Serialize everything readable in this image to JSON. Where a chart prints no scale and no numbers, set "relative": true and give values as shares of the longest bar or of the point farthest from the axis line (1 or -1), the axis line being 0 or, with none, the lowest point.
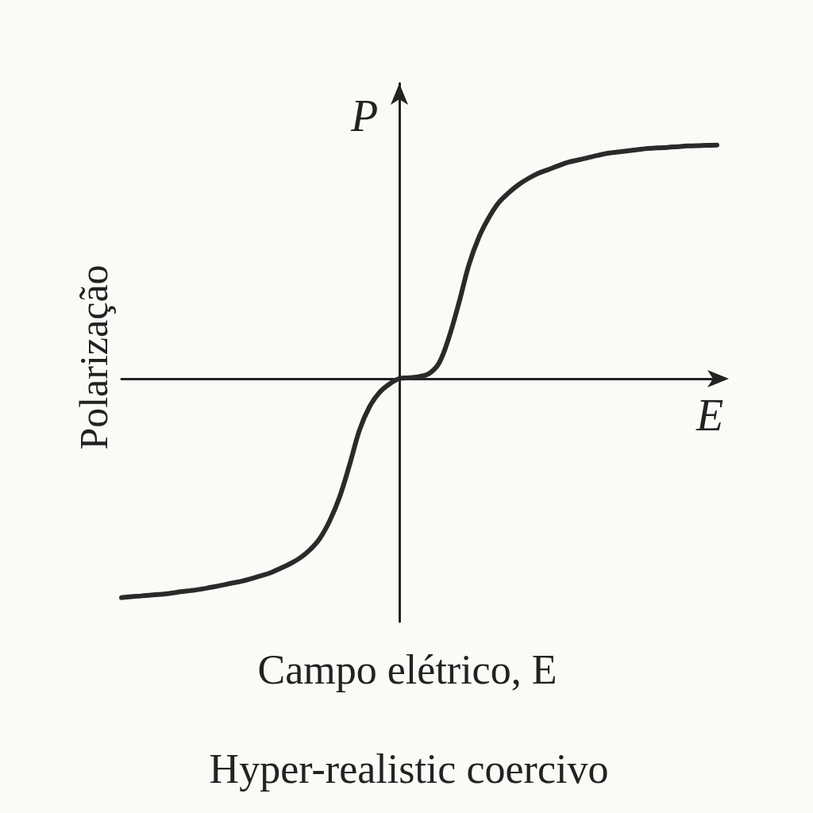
{
  "chart_data": {
    "type": "line",
    "relative": true,
    "xlabel": "Campo elétrico, E",
    "ylabel": "Polarização",
    "annotations": [
      "P",
      "E",
      "Hyper-realistic coercivo"
    ],
    "categories": [
      null,
      null,
      null,
      null,
      null,
      null,
      null,
      null,
      null,
      null,
      null,
      null,
      null,
      null,
      null,
      null,
      null,
      null,
      null,
      null,
      null,
      null,
      null,
      null,
      null,
      null,
      null,
      null,
      null,
      null,
      null,
      null,
      null,
      null,
      null,
      null,
      null,
      null,
      null,
      null,
      null,
      null,
      null,
      null,
      null,
      null,
      null,
      null,
      null,
      null,
      null,
      null,
      null,
      null,
      null,
      null,
      null,
      null,
      null,
      null,
      null
    ],
    "values": [
      -0.937,
      -0.933,
      -0.93,
      -0.926,
      -0.923,
      -0.918,
      -0.912,
      -0.907,
      -0.901,
      -0.893,
      -0.885,
      -0.876,
      -0.868,
      -0.857,
      -0.844,
      -0.831,
      -0.812,
      -0.792,
      -0.767,
      -0.732,
      -0.683,
      -0.607,
      -0.504,
      -0.366,
      -0.218,
      -0.12,
      -0.059,
      -0.023,
      0,
      0.004,
      0.009,
      0.022,
      0.067,
      0.177,
      0.324,
      0.486,
      0.604,
      0.688,
      0.753,
      0.795,
      0.83,
      0.857,
      0.879,
      0.895,
      0.911,
      0.926,
      0.936,
      0.946,
      0.956,
      0.965,
      0.97,
      0.975,
      0.98,
      0.985,
      0.988,
      0.99,
      0.993,
      0.996,
      0.997,
      0.999,
      1
    ],
    "color": "#2a2a2a",
    "marker": "none",
    "tick_labels": false
  }
}
